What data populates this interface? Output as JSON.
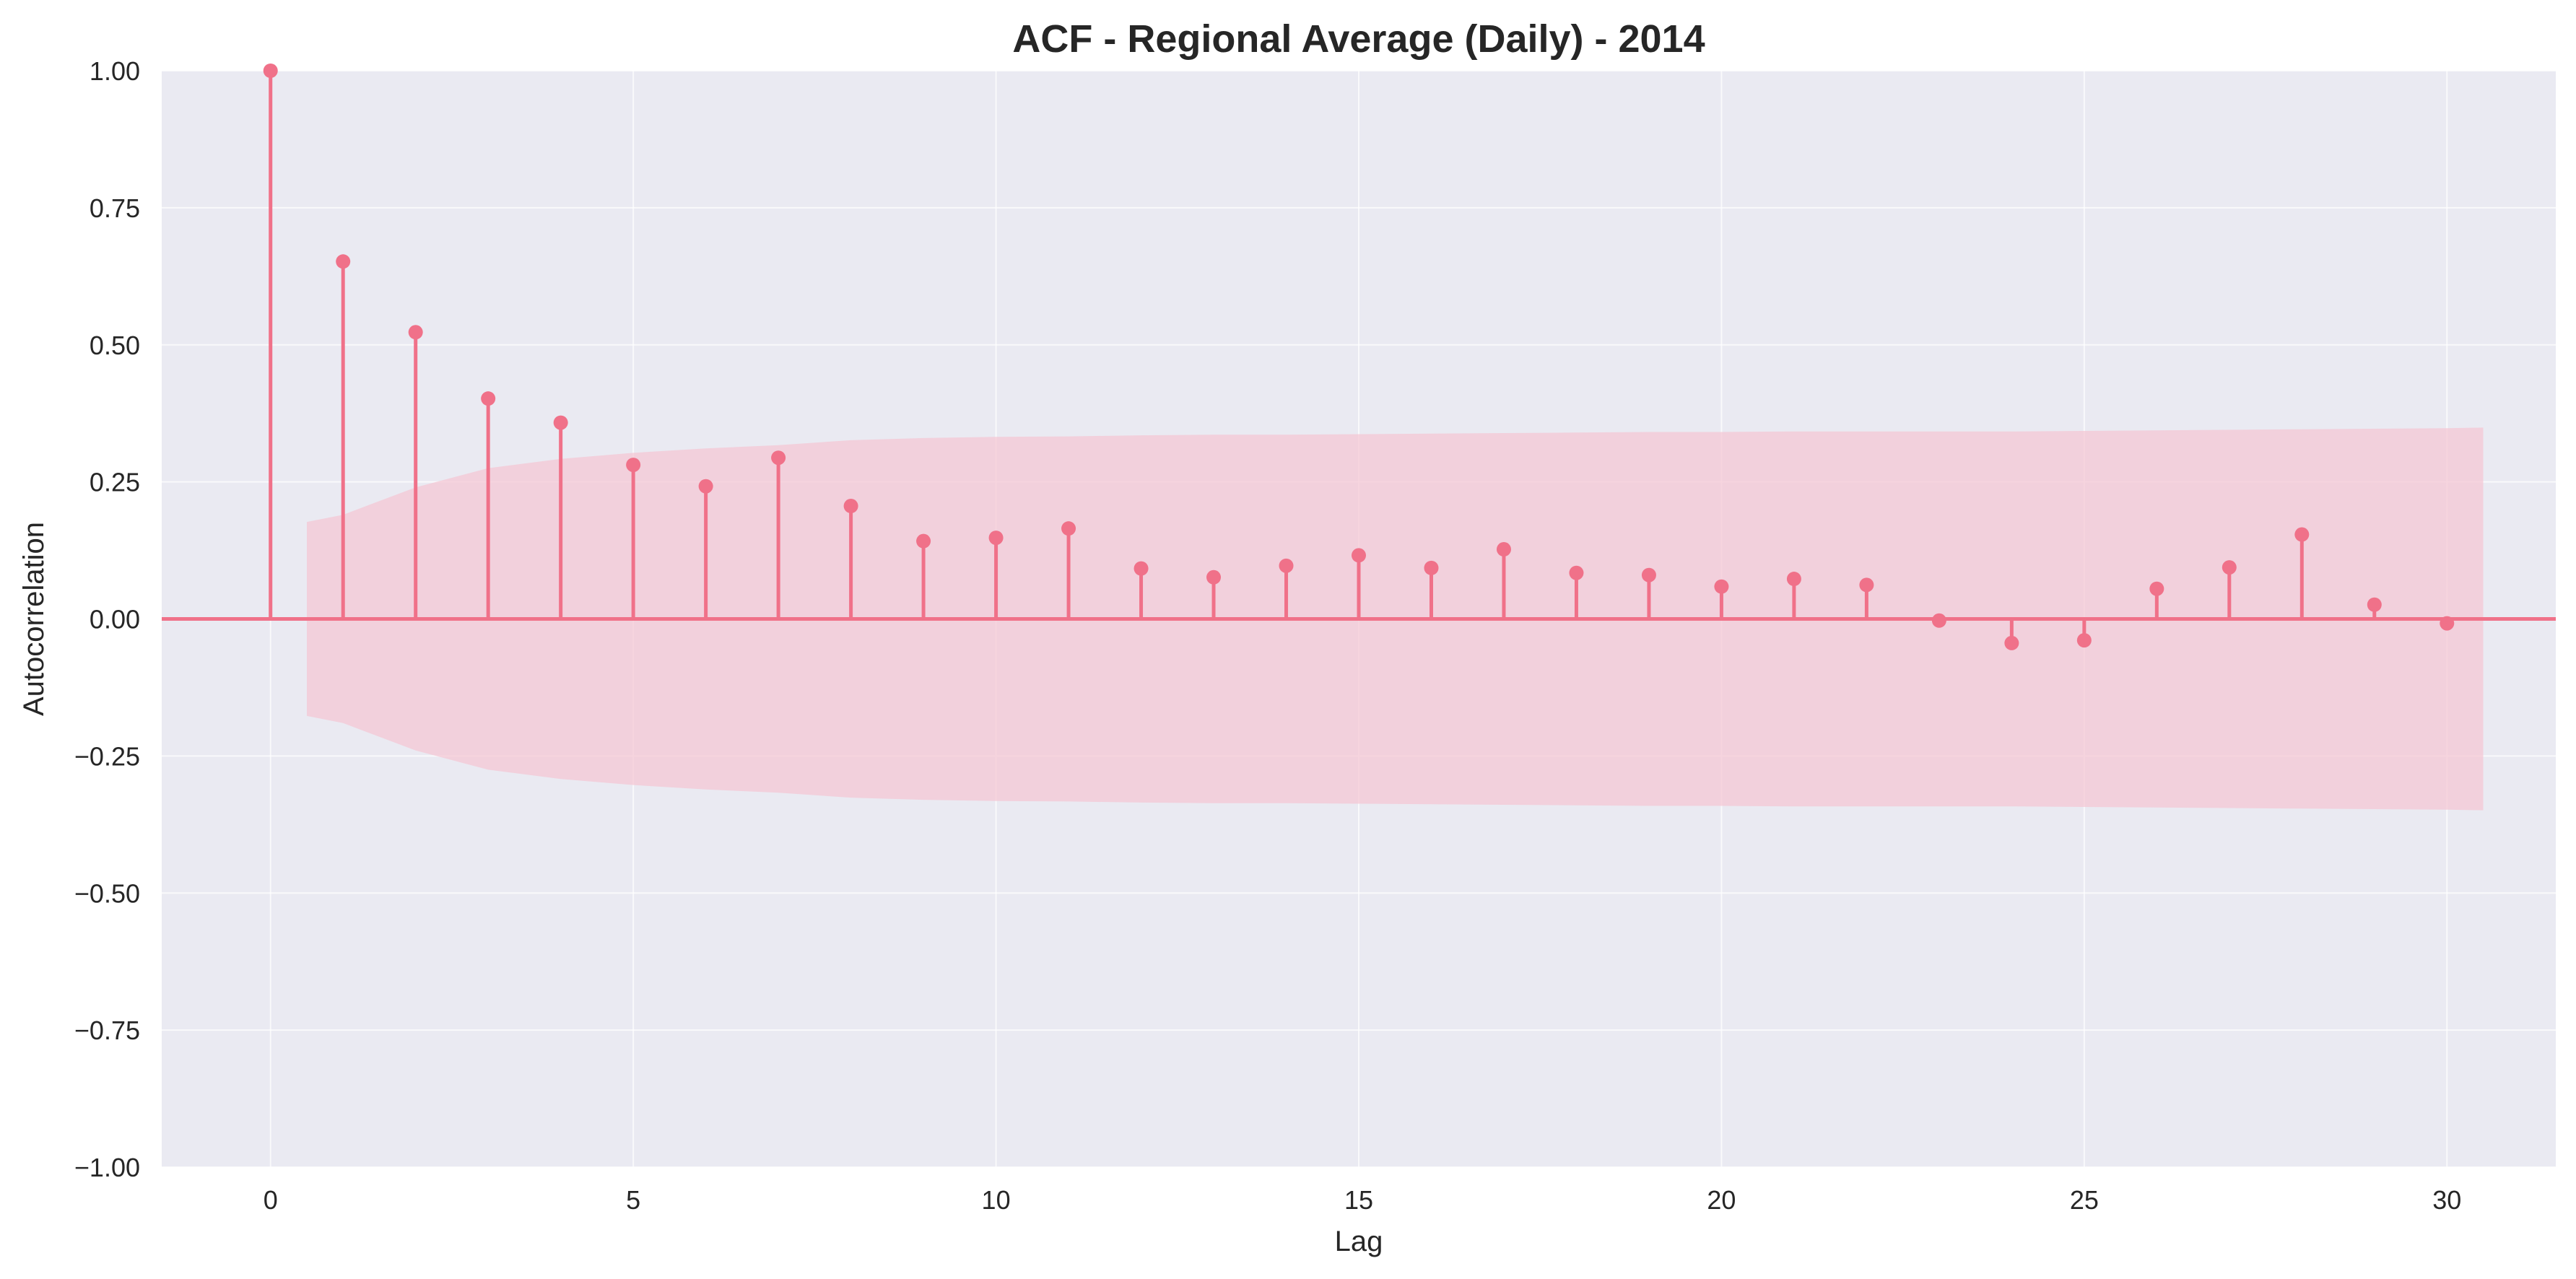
{
  "chart_data": {
    "type": "stem",
    "title": "ACF - Regional Average (Daily) - 2014",
    "xlabel": "Lag",
    "ylabel": "Autocorrelation",
    "xlim": [
      -1.5,
      31.5
    ],
    "ylim": [
      -1.0,
      1.0
    ],
    "x_ticks": [
      0,
      5,
      10,
      15,
      20,
      25,
      30
    ],
    "x_tick_labels": [
      "0",
      "5",
      "10",
      "15",
      "20",
      "25",
      "30"
    ],
    "y_ticks": [
      1.0,
      0.75,
      0.5,
      0.25,
      0.0,
      -0.25,
      -0.5,
      -0.75,
      -1.0
    ],
    "y_tick_labels": [
      "1.00",
      "0.75",
      "0.50",
      "0.25",
      "0.00",
      "−0.25",
      "−0.50",
      "−0.75",
      "−1.00"
    ],
    "grid": true,
    "lags": [
      0,
      1,
      2,
      3,
      4,
      5,
      6,
      7,
      8,
      9,
      10,
      11,
      12,
      13,
      14,
      15,
      16,
      17,
      18,
      19,
      20,
      21,
      22,
      23,
      24,
      25,
      26,
      27,
      28,
      29,
      30
    ],
    "values": [
      1.0,
      0.652,
      0.523,
      0.402,
      0.358,
      0.281,
      0.242,
      0.294,
      0.206,
      0.142,
      0.148,
      0.165,
      0.092,
      0.076,
      0.097,
      0.116,
      0.093,
      0.127,
      0.084,
      0.08,
      0.059,
      0.073,
      0.062,
      -0.003,
      -0.044,
      -0.039,
      0.055,
      0.094,
      0.154,
      0.026,
      -0.008
    ],
    "confidence_band": {
      "x": [
        0.5,
        1,
        2,
        3,
        4,
        5,
        6,
        7,
        8,
        9,
        10,
        11,
        12,
        13,
        14,
        15,
        16,
        17,
        18,
        19,
        20,
        21,
        22,
        23,
        24,
        25,
        26,
        27,
        28,
        29,
        30,
        30.5
      ],
      "upper": [
        0.177,
        0.19,
        0.24,
        0.275,
        0.292,
        0.303,
        0.311,
        0.317,
        0.326,
        0.33,
        0.332,
        0.333,
        0.335,
        0.336,
        0.336,
        0.337,
        0.338,
        0.339,
        0.34,
        0.341,
        0.341,
        0.342,
        0.342,
        0.342,
        0.342,
        0.343,
        0.344,
        0.345,
        0.346,
        0.347,
        0.348,
        0.349
      ]
    },
    "colors": {
      "stem": "#f07189",
      "band": "#f4c7d4",
      "background": "#eaeaf2",
      "grid": "#ffffff"
    }
  }
}
